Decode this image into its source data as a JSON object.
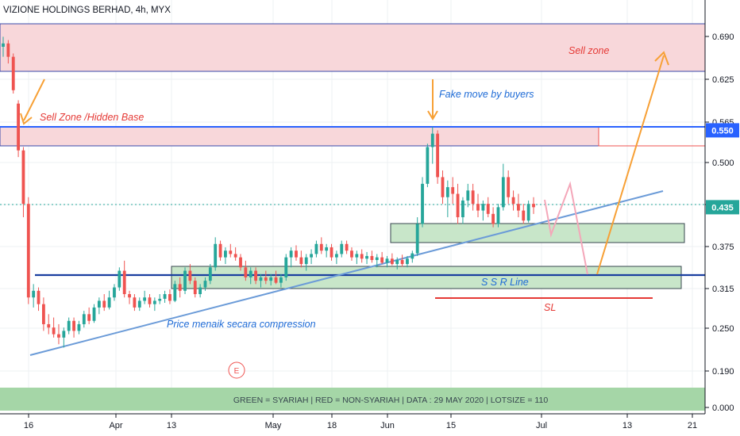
{
  "chart_data": {
    "type": "candlestick",
    "title": "VIZIONE HOLDINGS BERHAD, 4h, MYX",
    "y_ticks": [
      "0.690",
      "0.625",
      "0.565",
      "0.500",
      "0.435",
      "0.375",
      "0.315",
      "0.250",
      "0.190",
      "0.000"
    ],
    "x_ticks": [
      "16",
      "Apr",
      "13",
      "May",
      "18",
      "Jun",
      "15",
      "Jul",
      "13",
      "21"
    ],
    "price_labels": [
      {
        "text": "0.550",
        "price": 0.55,
        "color": "#2962ff"
      },
      {
        "text": "0.435",
        "price": 0.435,
        "color": "#26a69a"
      }
    ],
    "candles": [
      [
        0.675,
        0.69,
        0.66,
        0.68
      ],
      [
        0.68,
        0.685,
        0.65,
        0.66
      ],
      [
        0.66,
        0.665,
        0.605,
        0.61
      ],
      [
        0.59,
        0.595,
        0.51,
        0.52
      ],
      [
        0.52,
        0.525,
        0.42,
        0.44
      ],
      [
        0.44,
        0.45,
        0.29,
        0.3
      ],
      [
        0.3,
        0.32,
        0.285,
        0.31
      ],
      [
        0.31,
        0.315,
        0.28,
        0.29
      ],
      [
        0.29,
        0.3,
        0.25,
        0.26
      ],
      [
        0.26,
        0.275,
        0.245,
        0.255
      ],
      [
        0.255,
        0.27,
        0.24,
        0.245
      ],
      [
        0.245,
        0.26,
        0.23,
        0.24
      ],
      [
        0.24,
        0.255,
        0.225,
        0.25
      ],
      [
        0.25,
        0.27,
        0.245,
        0.265
      ],
      [
        0.265,
        0.27,
        0.24,
        0.25
      ],
      [
        0.25,
        0.265,
        0.245,
        0.26
      ],
      [
        0.26,
        0.28,
        0.255,
        0.275
      ],
      [
        0.275,
        0.285,
        0.26,
        0.265
      ],
      [
        0.265,
        0.29,
        0.262,
        0.285
      ],
      [
        0.285,
        0.3,
        0.275,
        0.295
      ],
      [
        0.295,
        0.305,
        0.28,
        0.285
      ],
      [
        0.285,
        0.31,
        0.282,
        0.3
      ],
      [
        0.3,
        0.32,
        0.295,
        0.315
      ],
      [
        0.315,
        0.345,
        0.31,
        0.34
      ],
      [
        0.34,
        0.355,
        0.3,
        0.305
      ],
      [
        0.305,
        0.31,
        0.29,
        0.3
      ],
      [
        0.3,
        0.305,
        0.28,
        0.285
      ],
      [
        0.285,
        0.3,
        0.28,
        0.295
      ],
      [
        0.295,
        0.31,
        0.29,
        0.3
      ],
      [
        0.3,
        0.305,
        0.285,
        0.29
      ],
      [
        0.29,
        0.3,
        0.28,
        0.295
      ],
      [
        0.295,
        0.305,
        0.29,
        0.298
      ],
      [
        0.298,
        0.31,
        0.292,
        0.305
      ],
      [
        0.305,
        0.312,
        0.29,
        0.295
      ],
      [
        0.295,
        0.325,
        0.293,
        0.32
      ],
      [
        0.32,
        0.33,
        0.3,
        0.31
      ],
      [
        0.31,
        0.345,
        0.305,
        0.34
      ],
      [
        0.34,
        0.35,
        0.32,
        0.325
      ],
      [
        0.325,
        0.33,
        0.3,
        0.305
      ],
      [
        0.305,
        0.32,
        0.3,
        0.315
      ],
      [
        0.315,
        0.33,
        0.31,
        0.325
      ],
      [
        0.325,
        0.35,
        0.32,
        0.345
      ],
      [
        0.345,
        0.39,
        0.34,
        0.38
      ],
      [
        0.38,
        0.385,
        0.355,
        0.36
      ],
      [
        0.36,
        0.375,
        0.35,
        0.37
      ],
      [
        0.37,
        0.38,
        0.36,
        0.365
      ],
      [
        0.365,
        0.375,
        0.355,
        0.36
      ],
      [
        0.36,
        0.365,
        0.34,
        0.345
      ],
      [
        0.345,
        0.355,
        0.325,
        0.33
      ],
      [
        0.33,
        0.345,
        0.32,
        0.34
      ],
      [
        0.34,
        0.345,
        0.32,
        0.325
      ],
      [
        0.325,
        0.335,
        0.315,
        0.33
      ],
      [
        0.33,
        0.34,
        0.32,
        0.325
      ],
      [
        0.325,
        0.335,
        0.318,
        0.33
      ],
      [
        0.33,
        0.34,
        0.32,
        0.322
      ],
      [
        0.322,
        0.335,
        0.315,
        0.33
      ],
      [
        0.33,
        0.365,
        0.325,
        0.36
      ],
      [
        0.36,
        0.375,
        0.345,
        0.37
      ],
      [
        0.37,
        0.378,
        0.355,
        0.36
      ],
      [
        0.36,
        0.37,
        0.345,
        0.35
      ],
      [
        0.35,
        0.365,
        0.34,
        0.36
      ],
      [
        0.36,
        0.372,
        0.35,
        0.365
      ],
      [
        0.365,
        0.385,
        0.36,
        0.38
      ],
      [
        0.38,
        0.39,
        0.365,
        0.37
      ],
      [
        0.37,
        0.38,
        0.36,
        0.375
      ],
      [
        0.375,
        0.38,
        0.355,
        0.36
      ],
      [
        0.36,
        0.37,
        0.35,
        0.365
      ],
      [
        0.365,
        0.385,
        0.36,
        0.38
      ],
      [
        0.38,
        0.385,
        0.365,
        0.37
      ],
      [
        0.37,
        0.375,
        0.355,
        0.36
      ],
      [
        0.36,
        0.37,
        0.35,
        0.365
      ],
      [
        0.365,
        0.372,
        0.352,
        0.358
      ],
      [
        0.358,
        0.368,
        0.35,
        0.362
      ],
      [
        0.362,
        0.37,
        0.352,
        0.356
      ],
      [
        0.356,
        0.365,
        0.345,
        0.36
      ],
      [
        0.36,
        0.368,
        0.35,
        0.352
      ],
      [
        0.352,
        0.362,
        0.345,
        0.358
      ],
      [
        0.358,
        0.366,
        0.348,
        0.35
      ],
      [
        0.35,
        0.36,
        0.342,
        0.356
      ],
      [
        0.356,
        0.364,
        0.346,
        0.35
      ],
      [
        0.35,
        0.362,
        0.345,
        0.358
      ],
      [
        0.358,
        0.37,
        0.352,
        0.366
      ],
      [
        0.366,
        0.42,
        0.362,
        0.41
      ],
      [
        0.41,
        0.48,
        0.405,
        0.47
      ],
      [
        0.47,
        0.53,
        0.465,
        0.525
      ],
      [
        0.525,
        0.555,
        0.5,
        0.545
      ],
      [
        0.545,
        0.55,
        0.47,
        0.48
      ],
      [
        0.48,
        0.49,
        0.44,
        0.45
      ],
      [
        0.45,
        0.475,
        0.42,
        0.465
      ],
      [
        0.465,
        0.48,
        0.44,
        0.455
      ],
      [
        0.455,
        0.47,
        0.41,
        0.42
      ],
      [
        0.42,
        0.45,
        0.41,
        0.445
      ],
      [
        0.445,
        0.47,
        0.435,
        0.46
      ],
      [
        0.46,
        0.47,
        0.43,
        0.44
      ],
      [
        0.44,
        0.455,
        0.42,
        0.43
      ],
      [
        0.43,
        0.445,
        0.415,
        0.44
      ],
      [
        0.44,
        0.45,
        0.42,
        0.425
      ],
      [
        0.425,
        0.435,
        0.405,
        0.41
      ],
      [
        0.41,
        0.44,
        0.405,
        0.435
      ],
      [
        0.435,
        0.5,
        0.43,
        0.48
      ],
      [
        0.48,
        0.49,
        0.44,
        0.45
      ],
      [
        0.45,
        0.46,
        0.43,
        0.44
      ],
      [
        0.44,
        0.455,
        0.42,
        0.43
      ],
      [
        0.43,
        0.44,
        0.41,
        0.415
      ],
      [
        0.415,
        0.445,
        0.412,
        0.44
      ],
      [
        0.44,
        0.45,
        0.425,
        0.435
      ]
    ],
    "colors": {
      "up": "#26a69a",
      "down": "#ef5350",
      "blue": "#2962ff",
      "zone_fill": "#f8d7da",
      "zone_border": "#3949ab",
      "green_fill": "#c8e6c9"
    }
  },
  "annotations": {
    "sell_zone": "Sell zone",
    "sell_zone_hidden_base": "Sell Zone /Hidden Base",
    "fake_move": "Fake move by buyers",
    "ssr_line": "S S R Line",
    "sl": "SL",
    "compression": "Price menaik secara compression",
    "event_marker": "E"
  },
  "footer": {
    "text": "GREEN = SYARIAH   |  RED = NON-SYARIAH  |  DATA : 29 MAY 2020  |  LOTSIZE = 110"
  }
}
